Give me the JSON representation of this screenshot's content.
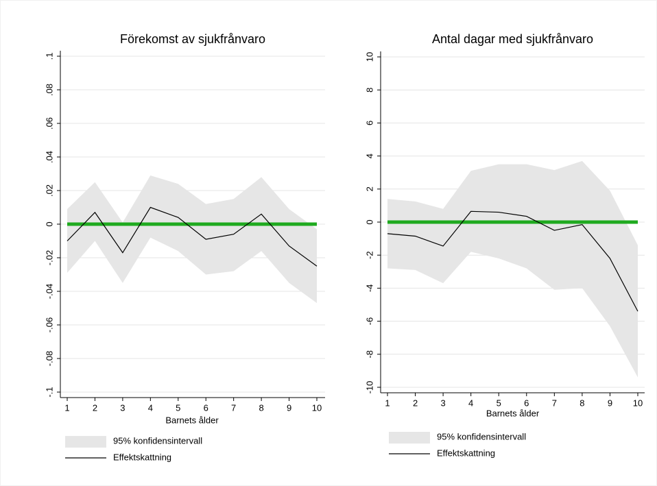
{
  "chart_data": [
    {
      "type": "line",
      "title": "Förekomst av sjukfrånvaro",
      "x_label": "Barnets ålder",
      "x": [
        1,
        2,
        3,
        4,
        5,
        6,
        7,
        8,
        9,
        10
      ],
      "xlim": [
        1,
        10
      ],
      "xticks": [
        1,
        2,
        3,
        4,
        5,
        6,
        7,
        8,
        9,
        10
      ],
      "ylim": [
        -0.1,
        0.1
      ],
      "yticks": [
        {
          "value": -0.1,
          "label": "-.1"
        },
        {
          "value": -0.08,
          "label": "-.08"
        },
        {
          "value": -0.06,
          "label": "-.06"
        },
        {
          "value": -0.04,
          "label": "-.04"
        },
        {
          "value": -0.02,
          "label": "-.02"
        },
        0,
        {
          "value": 0.02,
          "label": ".02"
        },
        {
          "value": 0.04,
          "label": ".04"
        },
        {
          "value": 0.06,
          "label": ".06"
        },
        {
          "value": 0.08,
          "label": ".08"
        },
        {
          "value": 0.1,
          "label": ".1"
        }
      ],
      "grid": true,
      "series": [
        {
          "name": "95% konfidensintervall",
          "color": "#e6e6e6",
          "lower": [
            -0.029,
            -0.01,
            -0.035,
            -0.008,
            -0.016,
            -0.03,
            -0.028,
            -0.016,
            -0.035,
            -0.047
          ],
          "upper": [
            0.009,
            0.025,
            0.001,
            0.029,
            0.024,
            0.012,
            0.015,
            0.028,
            0.009,
            -0.003
          ]
        },
        {
          "name": "Effektskattning",
          "color": "#000000",
          "values": [
            -0.01,
            0.007,
            -0.017,
            0.01,
            0.004,
            -0.009,
            -0.006,
            0.006,
            -0.013,
            -0.025
          ]
        }
      ],
      "reference_line": {
        "value": 0,
        "color": "#1faa1f"
      }
    },
    {
      "type": "line",
      "title": "Antal dagar med sjukfrånvaro",
      "x_label": "Barnets ålder",
      "x": [
        1,
        2,
        3,
        4,
        5,
        6,
        7,
        8,
        9,
        10
      ],
      "xlim": [
        1,
        10
      ],
      "xticks": [
        1,
        2,
        3,
        4,
        5,
        6,
        7,
        8,
        9,
        10
      ],
      "ylim": [
        -10,
        10
      ],
      "yticks": [
        -10,
        -8,
        -6,
        -4,
        -2,
        0,
        2,
        4,
        6,
        8,
        10
      ],
      "grid": true,
      "series": [
        {
          "name": "95% konfidensintervall",
          "color": "#e6e6e6",
          "lower": [
            -2.8,
            -2.9,
            -3.7,
            -1.8,
            -2.2,
            -2.8,
            -4.1,
            -4.0,
            -6.3,
            -9.4
          ],
          "upper": [
            1.4,
            1.25,
            0.8,
            3.1,
            3.5,
            3.5,
            3.15,
            3.7,
            1.9,
            -1.4
          ]
        },
        {
          "name": "Effektskattning",
          "color": "#000000",
          "values": [
            -0.7,
            -0.85,
            -1.45,
            0.65,
            0.6,
            0.35,
            -0.5,
            -0.15,
            -2.2,
            -5.4
          ]
        }
      ],
      "reference_line": {
        "value": 0,
        "color": "#1faa1f"
      }
    }
  ]
}
